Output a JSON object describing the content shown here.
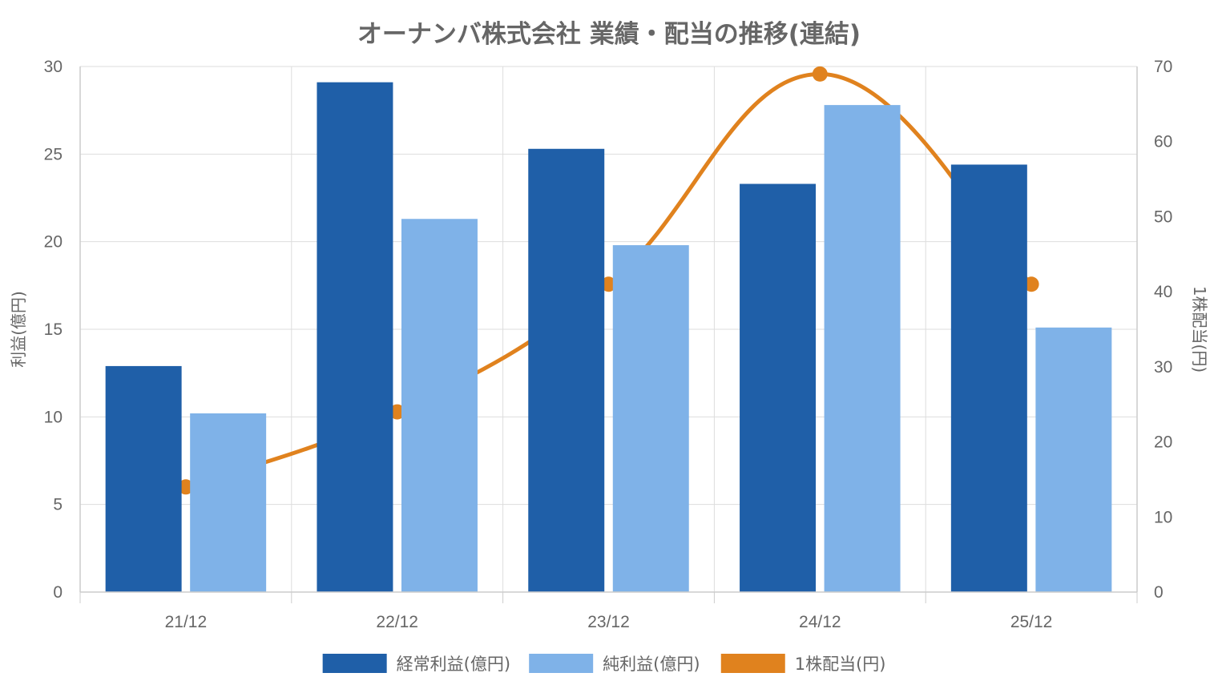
{
  "chart_data": {
    "type": "bar",
    "title": "オーナンバ株式会社 業績・配当の推移(連結)",
    "categories": [
      "21/12",
      "22/12",
      "23/12",
      "24/12",
      "25/12"
    ],
    "series": [
      {
        "name": "経常利益(億円)",
        "kind": "bar",
        "axis": "left",
        "color": "#1f5fa8",
        "values": [
          12.9,
          29.1,
          25.3,
          23.3,
          24.4
        ]
      },
      {
        "name": "純利益(億円)",
        "kind": "bar",
        "axis": "left",
        "color": "#7fb2e8",
        "values": [
          10.2,
          21.3,
          19.8,
          27.8,
          15.1
        ]
      },
      {
        "name": "1株配当(円)",
        "kind": "line",
        "axis": "right",
        "color": "#e0821e",
        "values": [
          14,
          24,
          41,
          69,
          41
        ]
      }
    ],
    "ylabel": "利益(億円)",
    "ylim": [
      0,
      30
    ],
    "yticks": [
      0,
      5,
      10,
      15,
      20,
      25,
      30
    ],
    "y2label": "1株配当(円)",
    "y2lim": [
      0,
      70
    ],
    "y2ticks": [
      0,
      10,
      20,
      30,
      40,
      50,
      60,
      70
    ],
    "grid": true,
    "legend_position": "bottom"
  }
}
